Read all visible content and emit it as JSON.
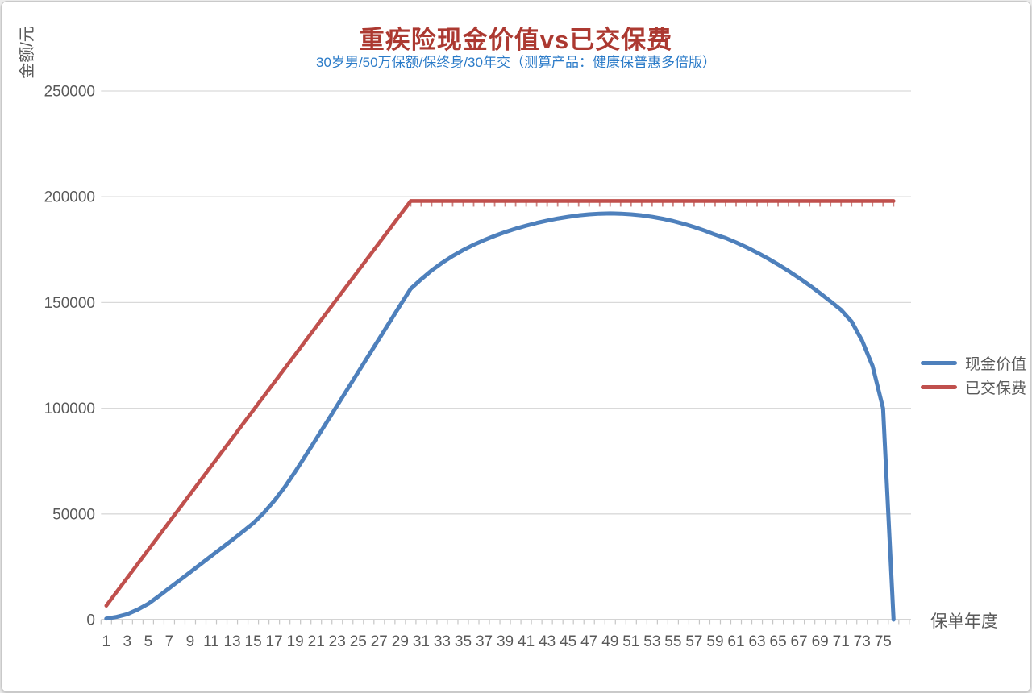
{
  "colors": {
    "title": "#AC3931",
    "subtitle": "#2B7BC8",
    "axis_text": "#595959",
    "gridline": "#D9D9D9",
    "axis_line": "#C6C6C6",
    "premium_marker": "#CC8280",
    "background": "#ffffff"
  },
  "chart_data": {
    "type": "line",
    "title": "重疾险现金价值vs已交保费",
    "subtitle": "30岁男/50万保额/保终身/30年交（测算产品：健康保普惠多倍版）",
    "ylabel": "金额/元",
    "xlabel": "保单年度",
    "ylim": [
      0,
      250000
    ],
    "yticks": [
      0,
      50000,
      100000,
      150000,
      200000,
      250000
    ],
    "grid": true,
    "legend_position": "right",
    "x_years": [
      1,
      2,
      3,
      4,
      5,
      6,
      7,
      8,
      9,
      10,
      11,
      12,
      13,
      14,
      15,
      16,
      17,
      18,
      19,
      20,
      21,
      22,
      23,
      24,
      25,
      26,
      27,
      28,
      29,
      30,
      31,
      32,
      33,
      34,
      35,
      36,
      37,
      38,
      39,
      40,
      41,
      42,
      43,
      44,
      45,
      46,
      47,
      48,
      49,
      50,
      51,
      52,
      53,
      54,
      55,
      56,
      57,
      58,
      59,
      60,
      61,
      62,
      63,
      64,
      65,
      66,
      67,
      68,
      69,
      70,
      71,
      72,
      73,
      74,
      75,
      76
    ],
    "xtick_labels": [
      1,
      3,
      5,
      7,
      9,
      11,
      13,
      15,
      17,
      19,
      21,
      23,
      25,
      27,
      29,
      31,
      33,
      35,
      37,
      39,
      41,
      43,
      45,
      47,
      49,
      51,
      53,
      55,
      57,
      59,
      61,
      63,
      65,
      67,
      69,
      71,
      73,
      75
    ],
    "series": [
      {
        "name": "现金价值",
        "color": "#4E80BC",
        "values": [
          500,
          1300,
          2600,
          4800,
          7500,
          11100,
          14900,
          18700,
          22500,
          26300,
          30100,
          33900,
          37700,
          41600,
          45600,
          50500,
          56200,
          62700,
          70000,
          77700,
          85500,
          93400,
          101300,
          109200,
          117100,
          125000,
          132900,
          140800,
          148700,
          156500,
          161000,
          165200,
          168800,
          172000,
          174800,
          177300,
          179500,
          181500,
          183300,
          184900,
          186300,
          187600,
          188700,
          189700,
          190500,
          191200,
          191700,
          192000,
          192100,
          192000,
          191700,
          191200,
          190500,
          189600,
          188500,
          187200,
          185700,
          184000,
          182100,
          180500,
          178400,
          176100,
          173600,
          170900,
          168000,
          164900,
          161600,
          158100,
          154400,
          150500,
          146500,
          141000,
          132000,
          120000,
          100000,
          0
        ]
      },
      {
        "name": "已交保费",
        "color": "#C0504D",
        "values": [
          6600,
          13200,
          19800,
          26400,
          33000,
          39600,
          46200,
          52800,
          59400,
          66000,
          72600,
          79200,
          85800,
          92400,
          99000,
          105600,
          112200,
          118800,
          125400,
          132000,
          138600,
          145200,
          151800,
          158400,
          165000,
          171600,
          178200,
          184800,
          191400,
          198000,
          198000,
          198000,
          198000,
          198000,
          198000,
          198000,
          198000,
          198000,
          198000,
          198000,
          198000,
          198000,
          198000,
          198000,
          198000,
          198000,
          198000,
          198000,
          198000,
          198000,
          198000,
          198000,
          198000,
          198000,
          198000,
          198000,
          198000,
          198000,
          198000,
          198000,
          198000,
          198000,
          198000,
          198000,
          198000,
          198000,
          198000,
          198000,
          198000,
          198000,
          198000,
          198000,
          198000,
          198000,
          198000,
          198000
        ]
      }
    ]
  }
}
